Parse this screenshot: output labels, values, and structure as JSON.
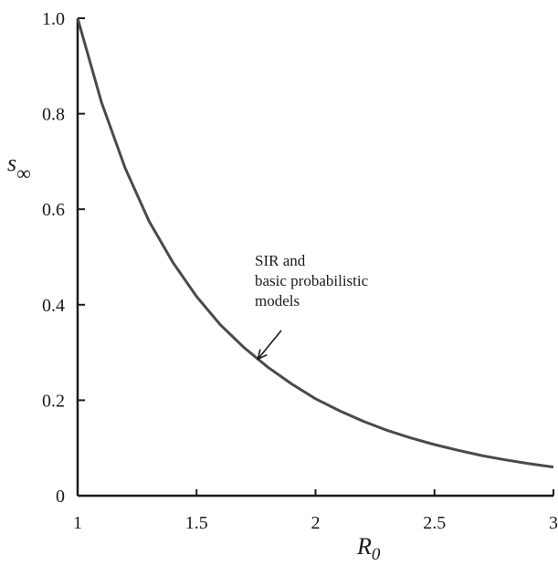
{
  "chart_data": {
    "type": "line",
    "xlabel": "R",
    "xlabel_sub": "0",
    "ylabel": "s",
    "ylabel_sub": "∞",
    "xlim": [
      1,
      3
    ],
    "ylim": [
      0,
      1
    ],
    "x_ticks": [
      1,
      1.5,
      2,
      2.5,
      3
    ],
    "x_tick_labels": [
      "1",
      "1.5",
      "2",
      "2.5",
      "3"
    ],
    "y_ticks": [
      0,
      0.2,
      0.4,
      0.6,
      0.8,
      1.0
    ],
    "y_tick_labels": [
      "0",
      "0.2",
      "0.4",
      "0.6",
      "0.8",
      "1.0"
    ],
    "grid": false,
    "series": [
      {
        "x": [
          1.0,
          1.1,
          1.2,
          1.3,
          1.4,
          1.5,
          1.6,
          1.7,
          1.8,
          1.9,
          2.0,
          2.1,
          2.2,
          2.3,
          2.4,
          2.5,
          2.6,
          2.7,
          2.8,
          2.9,
          3.0
        ],
        "y": [
          1.0,
          0.824,
          0.686,
          0.575,
          0.489,
          0.417,
          0.358,
          0.31,
          0.269,
          0.234,
          0.203,
          0.178,
          0.156,
          0.137,
          0.121,
          0.107,
          0.095,
          0.084,
          0.075,
          0.067,
          0.06
        ],
        "color": "#4a4a4a"
      }
    ],
    "annotations": [
      {
        "lines": [
          "SIR and",
          "basic probabilistic",
          "models"
        ],
        "arrow_to": {
          "x": 1.75,
          "y": 0.29
        }
      }
    ]
  }
}
